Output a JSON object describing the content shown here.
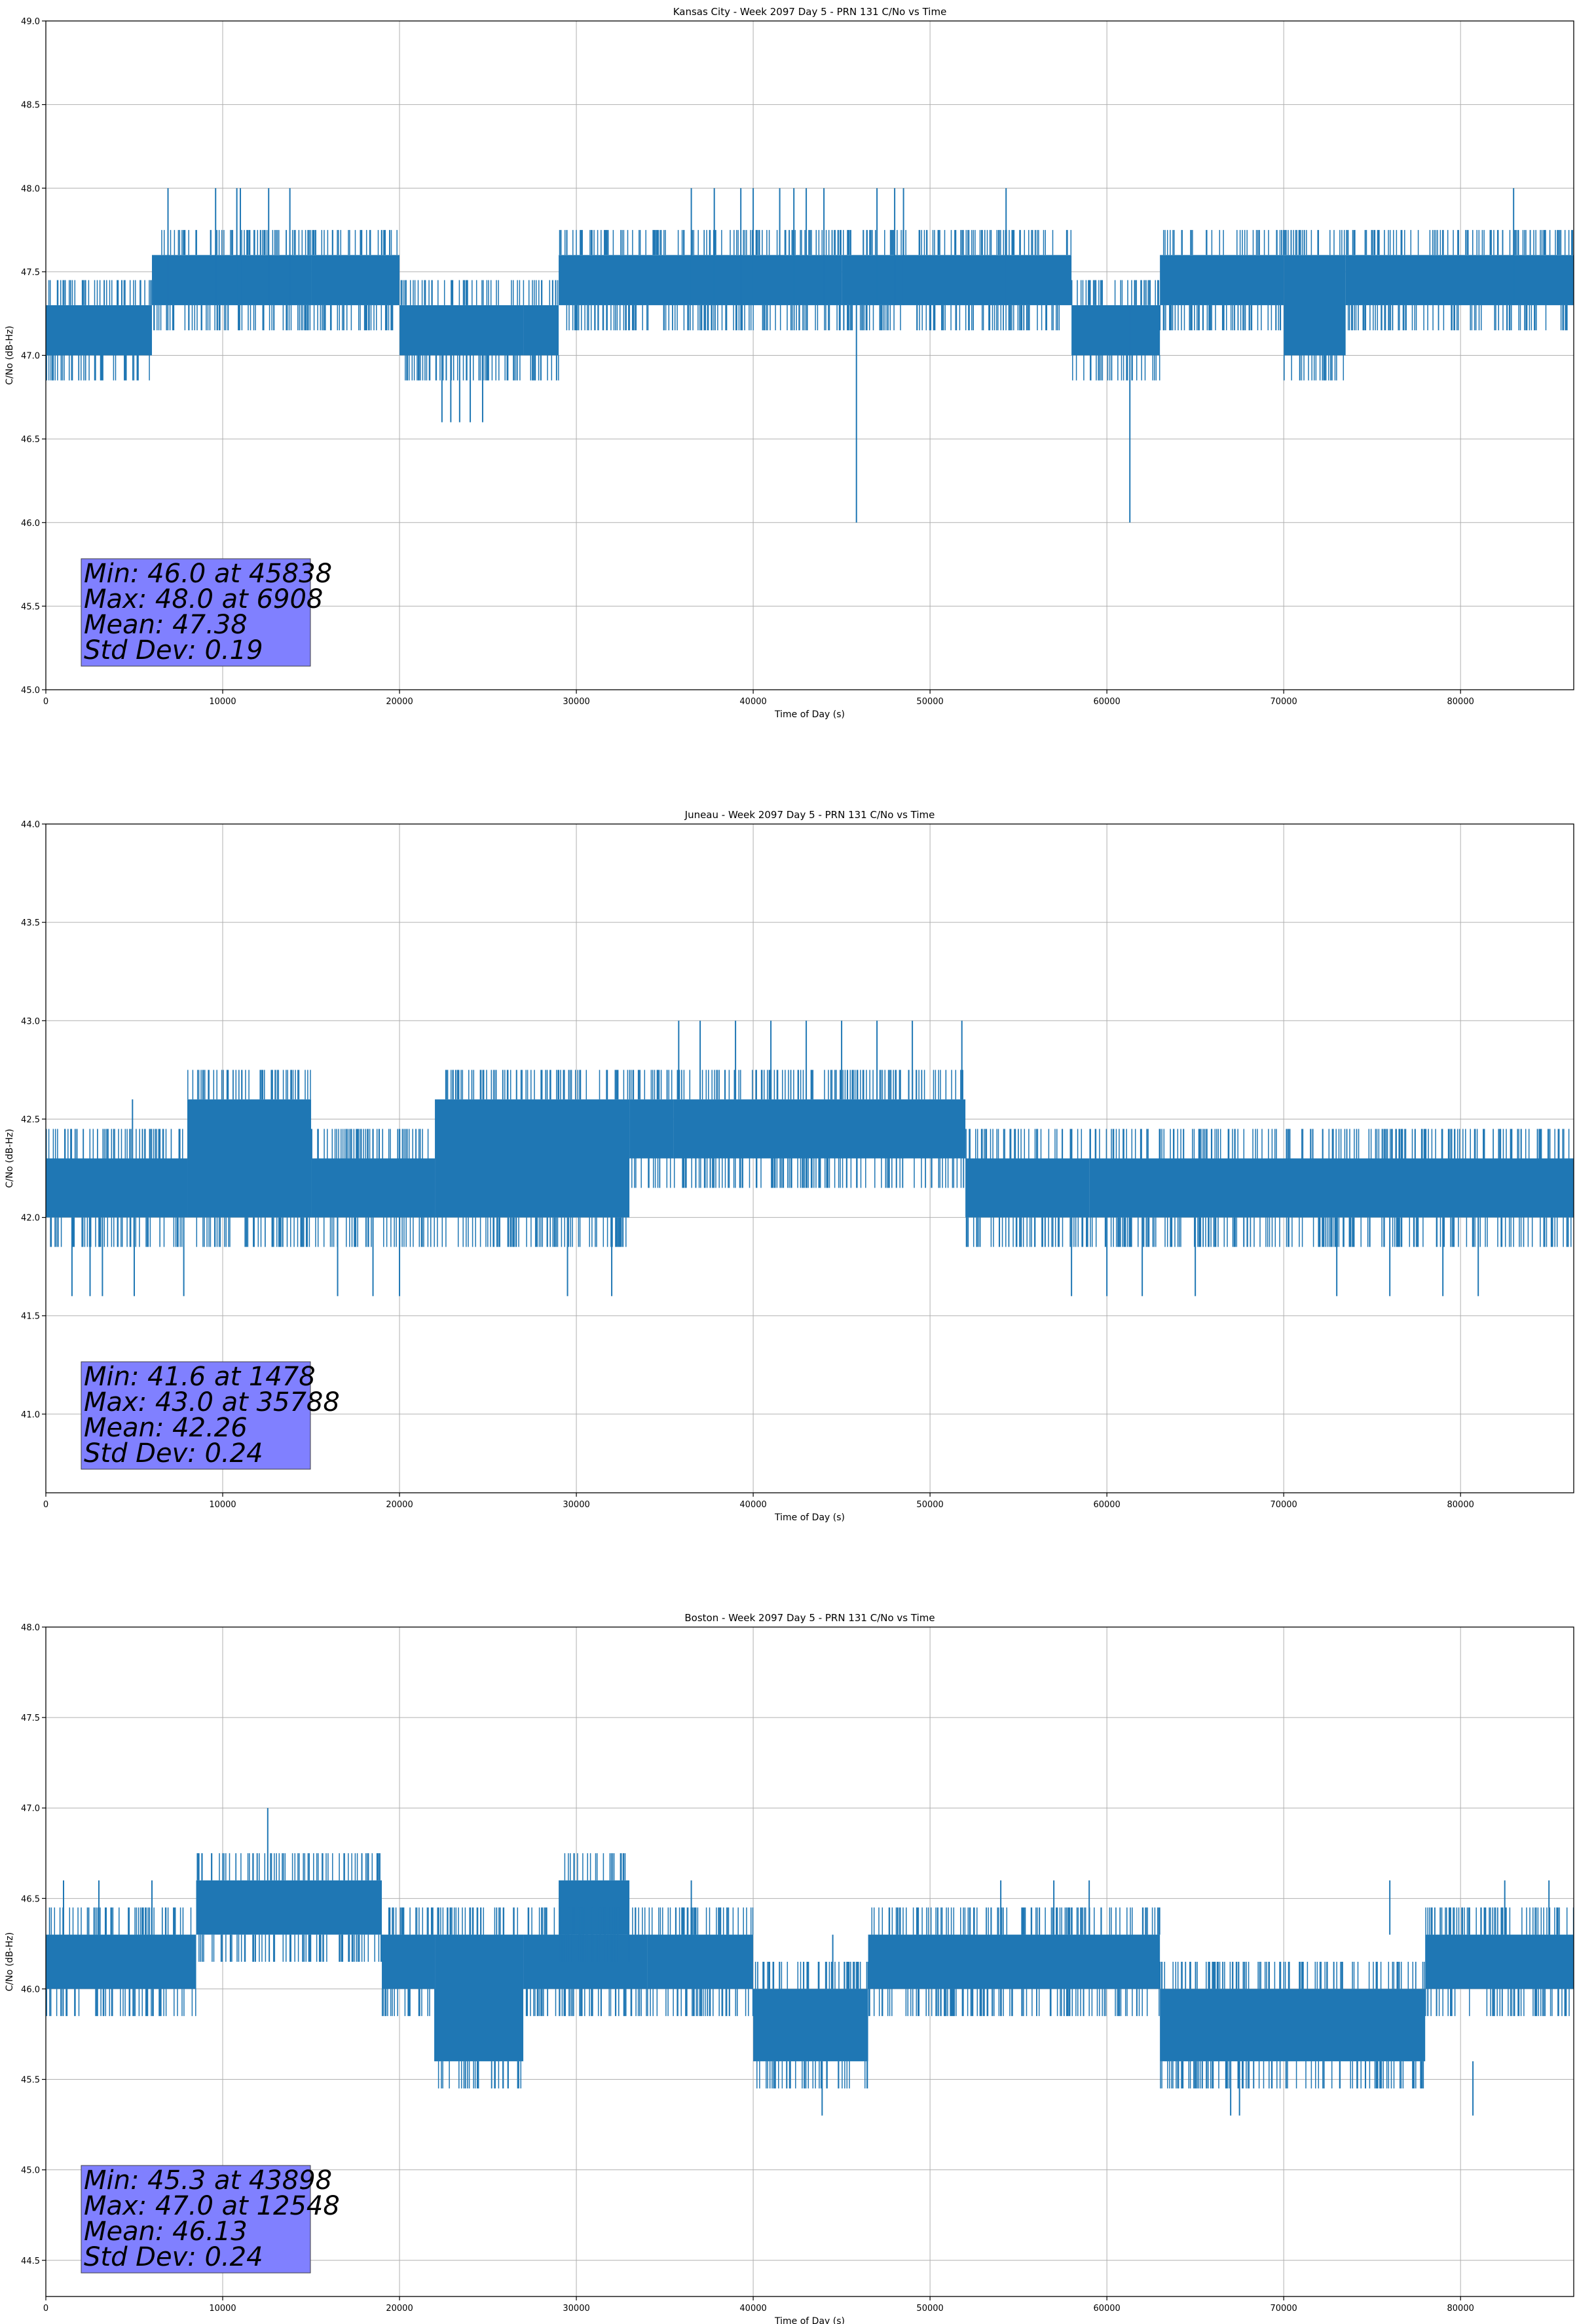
{
  "figure": {
    "background": "#ffffff",
    "series_color": "#1f77b4",
    "stats_box_color": "#8080ff",
    "grid_color": "#b0b0b0"
  },
  "chart_data": [
    {
      "type": "line",
      "title": "Kansas City - Week 2097 Day 5 - PRN 131 C/No vs Time",
      "xlabel": "Time of Day (s)",
      "ylabel": "C/No (dB-Hz)",
      "xlim": [
        0,
        86400
      ],
      "ylim": [
        45.0,
        49.0
      ],
      "xticks": [
        0,
        10000,
        20000,
        30000,
        40000,
        50000,
        60000,
        70000,
        80000
      ],
      "xtick_labels": [
        "0",
        "10000",
        "20000",
        "30000",
        "40000",
        "50000",
        "60000",
        "70000",
        "80000"
      ],
      "yticks": [
        45.0,
        45.5,
        46.0,
        46.5,
        47.0,
        47.5,
        48.0,
        48.5,
        49.0
      ],
      "ytick_labels": [
        "45.0",
        "45.5",
        "46.0",
        "46.5",
        "47.0",
        "47.5",
        "48.0",
        "48.5",
        "49.0"
      ],
      "grid": true,
      "stats": [
        "Min: 46.0 at 45838",
        "Max: 48.0 at 6908",
        "Mean: 47.38",
        "Std Dev: 0.19"
      ],
      "bands": [
        {
          "x": [
            0,
            6000
          ],
          "y": [
            47.0,
            47.3
          ]
        },
        {
          "x": [
            6000,
            15000
          ],
          "y": [
            47.3,
            47.6
          ]
        },
        {
          "x": [
            15000,
            20000
          ],
          "y": [
            47.3,
            47.6
          ]
        },
        {
          "x": [
            20000,
            27000
          ],
          "y": [
            47.0,
            47.3
          ]
        },
        {
          "x": [
            27000,
            29000
          ],
          "y": [
            47.0,
            47.3
          ]
        },
        {
          "x": [
            29000,
            45000
          ],
          "y": [
            47.3,
            47.6
          ]
        },
        {
          "x": [
            45000,
            58000
          ],
          "y": [
            47.3,
            47.6
          ]
        },
        {
          "x": [
            58000,
            63000
          ],
          "y": [
            47.0,
            47.3
          ]
        },
        {
          "x": [
            63000,
            70000
          ],
          "y": [
            47.3,
            47.6
          ]
        },
        {
          "x": [
            70000,
            73500
          ],
          "y": [
            47.0,
            47.6
          ]
        },
        {
          "x": [
            73500,
            86400
          ],
          "y": [
            47.3,
            47.6
          ]
        }
      ],
      "events": [
        {
          "x": 6908,
          "low": 47.3,
          "high": 48.0
        },
        {
          "x": 9600,
          "low": 47.3,
          "high": 48.0
        },
        {
          "x": 10800,
          "low": 47.3,
          "high": 48.0
        },
        {
          "x": 11000,
          "low": 47.3,
          "high": 48.0
        },
        {
          "x": 12600,
          "low": 47.3,
          "high": 48.0
        },
        {
          "x": 13800,
          "low": 47.3,
          "high": 48.0
        },
        {
          "x": 22400,
          "low": 46.6,
          "high": 47.0
        },
        {
          "x": 22900,
          "low": 46.6,
          "high": 47.0
        },
        {
          "x": 23400,
          "low": 46.6,
          "high": 47.0
        },
        {
          "x": 24000,
          "low": 46.6,
          "high": 47.0
        },
        {
          "x": 24700,
          "low": 46.6,
          "high": 47.0
        },
        {
          "x": 36500,
          "low": 47.3,
          "high": 48.0
        },
        {
          "x": 37800,
          "low": 47.3,
          "high": 48.0
        },
        {
          "x": 39300,
          "low": 47.3,
          "high": 48.0
        },
        {
          "x": 40000,
          "low": 47.3,
          "high": 48.0
        },
        {
          "x": 41500,
          "low": 47.3,
          "high": 48.0
        },
        {
          "x": 42300,
          "low": 47.3,
          "high": 48.0
        },
        {
          "x": 43000,
          "low": 47.3,
          "high": 48.0
        },
        {
          "x": 44000,
          "low": 47.3,
          "high": 48.0
        },
        {
          "x": 45838,
          "low": 46.0,
          "high": 47.3
        },
        {
          "x": 47000,
          "low": 47.3,
          "high": 48.0
        },
        {
          "x": 48000,
          "low": 47.3,
          "high": 48.0
        },
        {
          "x": 48500,
          "low": 47.3,
          "high": 48.0
        },
        {
          "x": 54300,
          "low": 47.3,
          "high": 48.0
        },
        {
          "x": 61300,
          "low": 46.0,
          "high": 47.3
        },
        {
          "x": 83000,
          "low": 47.3,
          "high": 48.0
        }
      ]
    },
    {
      "type": "line",
      "title": "Juneau - Week 2097 Day 5 - PRN 131 C/No vs Time",
      "xlabel": "Time of Day (s)",
      "ylabel": "C/No (dB-Hz)",
      "xlim": [
        0,
        86400
      ],
      "ylim": [
        40.6,
        44.0
      ],
      "xticks": [
        0,
        10000,
        20000,
        30000,
        40000,
        50000,
        60000,
        70000,
        80000
      ],
      "xtick_labels": [
        "0",
        "10000",
        "20000",
        "30000",
        "40000",
        "50000",
        "60000",
        "70000",
        "80000"
      ],
      "yticks": [
        41.0,
        41.5,
        42.0,
        42.5,
        43.0,
        43.5,
        44.0
      ],
      "ytick_labels": [
        "41.0",
        "41.5",
        "42.0",
        "42.5",
        "43.0",
        "43.5",
        "44.0"
      ],
      "grid": true,
      "stats": [
        "Min: 41.6 at 1478",
        "Max: 43.0 at 35788",
        "Mean: 42.26",
        "Std Dev: 0.24"
      ],
      "bands": [
        {
          "x": [
            0,
            8000
          ],
          "y": [
            42.0,
            42.3
          ]
        },
        {
          "x": [
            8000,
            15000
          ],
          "y": [
            42.0,
            42.6
          ]
        },
        {
          "x": [
            15000,
            22000
          ],
          "y": [
            42.0,
            42.3
          ]
        },
        {
          "x": [
            22000,
            33000
          ],
          "y": [
            42.0,
            42.6
          ]
        },
        {
          "x": [
            33000,
            35500
          ],
          "y": [
            42.3,
            42.6
          ]
        },
        {
          "x": [
            35500,
            52000
          ],
          "y": [
            42.3,
            42.6
          ]
        },
        {
          "x": [
            52000,
            59000
          ],
          "y": [
            42.0,
            42.3
          ]
        },
        {
          "x": [
            59000,
            86400
          ],
          "y": [
            42.0,
            42.3
          ]
        }
      ],
      "events": [
        {
          "x": 1478,
          "low": 41.6,
          "high": 42.0
        },
        {
          "x": 2500,
          "low": 41.6,
          "high": 42.0
        },
        {
          "x": 3200,
          "low": 41.6,
          "high": 42.0
        },
        {
          "x": 4900,
          "low": 42.3,
          "high": 42.6
        },
        {
          "x": 5000,
          "low": 41.6,
          "high": 42.0
        },
        {
          "x": 7800,
          "low": 41.6,
          "high": 42.0
        },
        {
          "x": 16500,
          "low": 41.6,
          "high": 42.0
        },
        {
          "x": 18500,
          "low": 41.6,
          "high": 42.0
        },
        {
          "x": 20000,
          "low": 41.6,
          "high": 42.0
        },
        {
          "x": 29500,
          "low": 41.6,
          "high": 42.0
        },
        {
          "x": 32000,
          "low": 41.6,
          "high": 42.0
        },
        {
          "x": 35788,
          "low": 42.6,
          "high": 43.0
        },
        {
          "x": 37000,
          "low": 42.6,
          "high": 43.0
        },
        {
          "x": 39000,
          "low": 42.6,
          "high": 43.0
        },
        {
          "x": 41000,
          "low": 42.6,
          "high": 43.0
        },
        {
          "x": 43000,
          "low": 42.6,
          "high": 43.0
        },
        {
          "x": 45000,
          "low": 42.6,
          "high": 43.0
        },
        {
          "x": 47000,
          "low": 42.6,
          "high": 43.0
        },
        {
          "x": 49000,
          "low": 42.6,
          "high": 43.0
        },
        {
          "x": 51800,
          "low": 42.6,
          "high": 43.0
        },
        {
          "x": 58000,
          "low": 41.6,
          "high": 42.0
        },
        {
          "x": 60000,
          "low": 41.6,
          "high": 42.0
        },
        {
          "x": 62000,
          "low": 41.6,
          "high": 42.0
        },
        {
          "x": 65000,
          "low": 41.6,
          "high": 42.0
        },
        {
          "x": 73000,
          "low": 41.6,
          "high": 42.0
        },
        {
          "x": 76000,
          "low": 41.6,
          "high": 42.0
        },
        {
          "x": 79000,
          "low": 41.6,
          "high": 42.0
        },
        {
          "x": 81000,
          "low": 41.6,
          "high": 42.0
        }
      ]
    },
    {
      "type": "line",
      "title": "Boston - Week 2097 Day 5 - PRN 131 C/No vs Time",
      "xlabel": "Time of Day (s)",
      "ylabel": "C/No (dB-Hz)",
      "xlim": [
        0,
        86400
      ],
      "ylim": [
        44.3,
        48.0
      ],
      "xticks": [
        0,
        10000,
        20000,
        30000,
        40000,
        50000,
        60000,
        70000,
        80000
      ],
      "xtick_labels": [
        "0",
        "10000",
        "20000",
        "30000",
        "40000",
        "50000",
        "60000",
        "70000",
        "80000"
      ],
      "yticks": [
        44.5,
        45.0,
        45.5,
        46.0,
        46.5,
        47.0,
        47.5,
        48.0
      ],
      "ytick_labels": [
        "44.5",
        "45.0",
        "45.5",
        "46.0",
        "46.5",
        "47.0",
        "47.5",
        "48.0"
      ],
      "grid": true,
      "stats": [
        "Min: 45.3 at 43898",
        "Max: 47.0 at 12548",
        "Mean: 46.13",
        "Std Dev: 0.24"
      ],
      "bands": [
        {
          "x": [
            0,
            8500
          ],
          "y": [
            46.0,
            46.3
          ]
        },
        {
          "x": [
            8500,
            19000
          ],
          "y": [
            46.3,
            46.6
          ]
        },
        {
          "x": [
            19000,
            22000
          ],
          "y": [
            46.0,
            46.3
          ]
        },
        {
          "x": [
            22000,
            27000
          ],
          "y": [
            45.6,
            46.3
          ]
        },
        {
          "x": [
            27000,
            34000
          ],
          "y": [
            46.0,
            46.3
          ]
        },
        {
          "x": [
            29000,
            33000
          ],
          "y": [
            46.3,
            46.6
          ]
        },
        {
          "x": [
            34000,
            40000
          ],
          "y": [
            46.0,
            46.3
          ]
        },
        {
          "x": [
            40000,
            46500
          ],
          "y": [
            45.6,
            46.0
          ]
        },
        {
          "x": [
            46500,
            63000
          ],
          "y": [
            46.0,
            46.3
          ]
        },
        {
          "x": [
            63000,
            78000
          ],
          "y": [
            45.6,
            46.0
          ]
        },
        {
          "x": [
            78000,
            86400
          ],
          "y": [
            46.0,
            46.3
          ]
        }
      ],
      "events": [
        {
          "x": 1000,
          "low": 46.3,
          "high": 46.6
        },
        {
          "x": 3000,
          "low": 46.3,
          "high": 46.6
        },
        {
          "x": 6000,
          "low": 46.3,
          "high": 46.6
        },
        {
          "x": 12548,
          "low": 46.6,
          "high": 47.0
        },
        {
          "x": 22000,
          "low": 45.6,
          "high": 46.0
        },
        {
          "x": 36500,
          "low": 46.3,
          "high": 46.6
        },
        {
          "x": 43898,
          "low": 45.3,
          "high": 45.6
        },
        {
          "x": 44500,
          "low": 46.0,
          "high": 46.3
        },
        {
          "x": 54000,
          "low": 46.3,
          "high": 46.6
        },
        {
          "x": 57000,
          "low": 46.3,
          "high": 46.6
        },
        {
          "x": 59000,
          "low": 46.3,
          "high": 46.6
        },
        {
          "x": 67000,
          "low": 45.3,
          "high": 45.6
        },
        {
          "x": 67500,
          "low": 45.3,
          "high": 45.6
        },
        {
          "x": 76000,
          "low": 46.3,
          "high": 46.6
        },
        {
          "x": 80700,
          "low": 45.3,
          "high": 45.6
        },
        {
          "x": 82500,
          "low": 46.3,
          "high": 46.6
        },
        {
          "x": 85000,
          "low": 46.3,
          "high": 46.6
        }
      ]
    }
  ]
}
